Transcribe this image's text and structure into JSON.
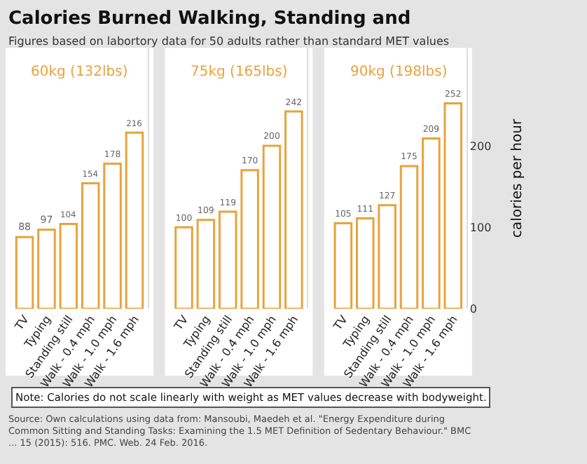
{
  "chart_data": [
    {
      "type": "bar",
      "title": "60kg (132lbs)",
      "categories": [
        "TV",
        "Typing",
        "Standing still",
        "Walk - 0.4 mph",
        "Walk - 1.0 mph",
        "Walk - 1.6 mph"
      ],
      "values": [
        88,
        97,
        104,
        154,
        178,
        216
      ],
      "color": "#e8a33c",
      "data_labels": true,
      "ylim": [
        0,
        320
      ],
      "yticks": [
        0,
        100,
        200
      ],
      "tick_labels": "x",
      "grid": false,
      "annotations": [
        "Calories Burned Walking, Standing and",
        "Figures based on labortory data for 50 adults rather than standard MET values",
        "Note: Calories do not scale linearly with weight as MET values decrease with bodyweight.",
        "Source: Own calculations using data from: Mansoubi, Maedeh et al. \"Energy Expenditure during Common Sitting and Standing Tasks: Examining the 1.5 MET Definition of Sedentary Behaviour.\" BMC ... 15 (2015): 516. PMC. Web. 24 Feb. 2016."
      ]
    },
    {
      "type": "bar",
      "title": "75kg (165lbs)",
      "categories": [
        "TV",
        "Typing",
        "Standing still",
        "Walk - 0.4 mph",
        "Walk - 1.0 mph",
        "Walk - 1.6 mph"
      ],
      "values": [
        100,
        109,
        119,
        170,
        200,
        242
      ],
      "color": "#e8a33c",
      "data_labels": true,
      "ylim": [
        0,
        320
      ],
      "yticks": [
        0,
        100,
        200
      ],
      "tick_labels": "x",
      "grid": false
    },
    {
      "type": "bar",
      "title": "90kg (198lbs)",
      "categories": [
        "TV",
        "Typing",
        "Standing still",
        "Walk - 0.4 mph",
        "Walk - 1.0 mph",
        "Walk - 1.6 mph"
      ],
      "values": [
        105,
        111,
        127,
        175,
        209,
        252
      ],
      "color": "#e8a33c",
      "data_labels": true,
      "ylim": [
        0,
        320
      ],
      "yticks": [
        0,
        100,
        200
      ],
      "ylabel": "calories per hour",
      "grid": false
    }
  ]
}
